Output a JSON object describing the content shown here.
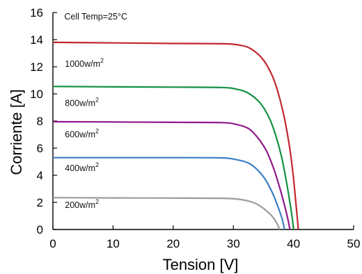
{
  "chart_data": {
    "type": "line",
    "xlabel": "Tension [V]",
    "ylabel": "Corriente [A]",
    "xlim": [
      0,
      50
    ],
    "ylim": [
      0,
      16
    ],
    "x_ticks": [
      "0",
      "10",
      "20",
      "30",
      "40",
      "50"
    ],
    "y_ticks": [
      "0",
      "2",
      "4",
      "6",
      "8",
      "10",
      "12",
      "14",
      "16"
    ],
    "grid": false,
    "annotation": "Cell Temp=25°C",
    "series": [
      {
        "label": "1000w/m",
        "label_sup": "2",
        "label_at": [
          2,
          12
        ],
        "color": "#c0272d",
        "points": [
          [
            0,
            13.8
          ],
          [
            10,
            13.76
          ],
          [
            20,
            13.72
          ],
          [
            28,
            13.7
          ],
          [
            31,
            13.6
          ],
          [
            33,
            13.3
          ],
          [
            35,
            12.5
          ],
          [
            36.5,
            11.3
          ],
          [
            37.5,
            10.0
          ],
          [
            38.5,
            8.2
          ],
          [
            39.3,
            6.2
          ],
          [
            39.9,
            4.2
          ],
          [
            40.3,
            2.4
          ],
          [
            40.6,
            1.0
          ],
          [
            40.8,
            0
          ]
        ]
      },
      {
        "label": "800w/m",
        "label_sup": "2",
        "label_at": [
          2,
          9.1
        ],
        "color": "#139143",
        "points": [
          [
            0,
            10.55
          ],
          [
            10,
            10.52
          ],
          [
            20,
            10.5
          ],
          [
            28,
            10.47
          ],
          [
            30.5,
            10.35
          ],
          [
            32.5,
            10.05
          ],
          [
            34.5,
            9.3
          ],
          [
            36,
            8.2
          ],
          [
            37,
            7.0
          ],
          [
            38,
            5.4
          ],
          [
            38.8,
            3.6
          ],
          [
            39.4,
            2.0
          ],
          [
            39.8,
            0.8
          ],
          [
            40.0,
            0
          ]
        ]
      },
      {
        "label": "600w/m",
        "label_sup": "2",
        "label_at": [
          2,
          6.8
        ],
        "color": "#8d198a",
        "points": [
          [
            0,
            7.95
          ],
          [
            10,
            7.93
          ],
          [
            20,
            7.9
          ],
          [
            28,
            7.88
          ],
          [
            30.5,
            7.75
          ],
          [
            32.5,
            7.45
          ],
          [
            34,
            6.8
          ],
          [
            35.5,
            5.8
          ],
          [
            36.7,
            4.5
          ],
          [
            37.7,
            3.1
          ],
          [
            38.5,
            1.8
          ],
          [
            39.1,
            0.7
          ],
          [
            39.4,
            0
          ]
        ]
      },
      {
        "label": "400w/m",
        "label_sup": "2",
        "label_at": [
          2,
          4.3
        ],
        "color": "#3b7fc4",
        "points": [
          [
            0,
            5.3
          ],
          [
            10,
            5.3
          ],
          [
            20,
            5.3
          ],
          [
            28,
            5.28
          ],
          [
            30.5,
            5.15
          ],
          [
            32.5,
            4.9
          ],
          [
            34,
            4.4
          ],
          [
            35.3,
            3.7
          ],
          [
            36.5,
            2.7
          ],
          [
            37.4,
            1.7
          ],
          [
            38.1,
            0.8
          ],
          [
            38.5,
            0
          ]
        ]
      },
      {
        "label": "200w/m",
        "label_sup": "2",
        "label_at": [
          2,
          1.6
        ],
        "color": "#9b9b9b",
        "points": [
          [
            0,
            2.35
          ],
          [
            10,
            2.33
          ],
          [
            20,
            2.32
          ],
          [
            28,
            2.3
          ],
          [
            30.5,
            2.25
          ],
          [
            32.5,
            2.1
          ],
          [
            34,
            1.85
          ],
          [
            35.3,
            1.45
          ],
          [
            36.4,
            1.0
          ],
          [
            37.2,
            0.5
          ],
          [
            37.7,
            0
          ]
        ]
      }
    ]
  }
}
